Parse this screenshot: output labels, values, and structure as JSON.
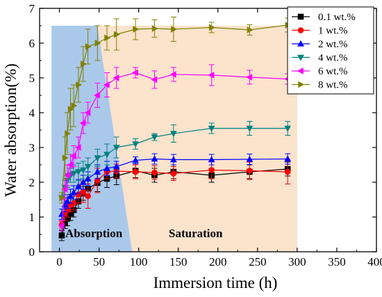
{
  "chart_data": {
    "type": "scatter",
    "xlabel": "Immersion time (h)",
    "ylabel": "Water absorption(%)",
    "xlim": [
      -25,
      400
    ],
    "ylim": [
      0,
      7
    ],
    "x_ticks": [
      0,
      50,
      100,
      150,
      200,
      250,
      300,
      350,
      400
    ],
    "y_ticks": [
      0,
      1,
      2,
      3,
      4,
      5,
      6,
      7
    ],
    "legend_position": "top-right",
    "regions": [
      {
        "label": "Absorption",
        "color": "#aac8ea",
        "polygon": [
          [
            -10,
            6.5
          ],
          [
            48,
            6.5
          ],
          [
            92,
            0
          ],
          [
            -10,
            0
          ]
        ]
      },
      {
        "label": "Saturation",
        "color": "#fbe3cc",
        "polygon": [
          [
            48,
            6.5
          ],
          [
            300,
            6.5
          ],
          [
            300,
            0
          ],
          [
            92,
            0
          ]
        ]
      }
    ],
    "series": [
      {
        "name": "0.1 wt.%",
        "color": "#000000",
        "marker": "square",
        "points": [
          [
            3,
            0.47,
            0.15
          ],
          [
            7,
            0.82,
            0.15
          ],
          [
            10,
            0.95,
            0.2
          ],
          [
            14,
            1.1,
            0.2
          ],
          [
            18,
            1.2,
            0.2
          ],
          [
            24,
            1.45,
            0.2
          ],
          [
            30,
            1.68,
            0.2
          ],
          [
            36,
            1.82,
            0.25
          ],
          [
            48,
            1.98,
            0.25
          ],
          [
            60,
            2.1,
            0.25
          ],
          [
            72,
            2.18,
            0.25
          ],
          [
            96,
            2.33,
            0.2
          ],
          [
            120,
            2.2,
            0.2
          ],
          [
            144,
            2.3,
            0.2
          ],
          [
            192,
            2.2,
            0.2
          ],
          [
            240,
            2.3,
            0.2
          ],
          [
            288,
            2.38,
            0.2
          ]
        ]
      },
      {
        "name": "1 wt.%",
        "color": "#ff0000",
        "marker": "circle",
        "points": [
          [
            3,
            0.78,
            0.1
          ],
          [
            7,
            1.1,
            0.2
          ],
          [
            10,
            1.2,
            0.2
          ],
          [
            14,
            1.35,
            0.2
          ],
          [
            18,
            1.4,
            0.2
          ],
          [
            24,
            1.65,
            0.25
          ],
          [
            30,
            1.72,
            0.3
          ],
          [
            36,
            1.6,
            0.35
          ],
          [
            48,
            2.05,
            0.35
          ],
          [
            60,
            2.3,
            0.2
          ],
          [
            72,
            2.32,
            0.2
          ],
          [
            96,
            2.3,
            0.2
          ],
          [
            120,
            2.28,
            0.2
          ],
          [
            144,
            2.25,
            0.2
          ],
          [
            192,
            2.35,
            0.25
          ],
          [
            240,
            2.33,
            0.25
          ],
          [
            288,
            2.3,
            0.35
          ]
        ]
      },
      {
        "name": "2 wt.%",
        "color": "#0000ff",
        "marker": "triangle-up",
        "points": [
          [
            3,
            1.08,
            0.15
          ],
          [
            7,
            1.35,
            0.2
          ],
          [
            10,
            1.45,
            0.2
          ],
          [
            14,
            1.6,
            0.2
          ],
          [
            18,
            1.7,
            0.2
          ],
          [
            24,
            1.88,
            0.2
          ],
          [
            30,
            2.0,
            0.2
          ],
          [
            36,
            2.1,
            0.2
          ],
          [
            48,
            2.3,
            0.2
          ],
          [
            60,
            2.4,
            0.2
          ],
          [
            72,
            2.45,
            0.15
          ],
          [
            96,
            2.63,
            0.1
          ],
          [
            120,
            2.67,
            0.15
          ],
          [
            144,
            2.65,
            0.15
          ],
          [
            192,
            2.65,
            0.15
          ],
          [
            240,
            2.66,
            0.15
          ],
          [
            288,
            2.67,
            0.15
          ]
        ]
      },
      {
        "name": "4 wt.%",
        "color": "#008080",
        "marker": "triangle-down",
        "points": [
          [
            3,
            1.55,
            0.15
          ],
          [
            7,
            1.85,
            0.2
          ],
          [
            10,
            2.05,
            0.2
          ],
          [
            14,
            2.2,
            0.2
          ],
          [
            18,
            2.25,
            0.25
          ],
          [
            24,
            2.3,
            0.25
          ],
          [
            30,
            2.35,
            0.25
          ],
          [
            36,
            2.45,
            0.25
          ],
          [
            48,
            2.7,
            0.25
          ],
          [
            60,
            2.8,
            0.3
          ],
          [
            72,
            3.0,
            0.3
          ],
          [
            96,
            3.1,
            0.15
          ],
          [
            120,
            3.3,
            0.1
          ],
          [
            144,
            3.4,
            0.25
          ],
          [
            192,
            3.55,
            0.15
          ],
          [
            240,
            3.55,
            0.2
          ],
          [
            288,
            3.55,
            0.2
          ]
        ]
      },
      {
        "name": "6 wt.%",
        "color": "#ff00ff",
        "marker": "triangle-left",
        "points": [
          [
            3,
            0.75,
            0.15
          ],
          [
            7,
            1.8,
            0.3
          ],
          [
            10,
            2.2,
            0.3
          ],
          [
            14,
            2.5,
            0.3
          ],
          [
            18,
            2.75,
            0.3
          ],
          [
            24,
            3.0,
            0.3
          ],
          [
            30,
            3.7,
            0.3
          ],
          [
            36,
            4.0,
            0.3
          ],
          [
            48,
            4.5,
            0.35
          ],
          [
            60,
            4.8,
            0.35
          ],
          [
            72,
            5.0,
            0.3
          ],
          [
            96,
            5.15,
            0.15
          ],
          [
            120,
            4.95,
            0.25
          ],
          [
            144,
            5.1,
            0.2
          ],
          [
            192,
            5.08,
            0.3
          ],
          [
            240,
            5.02,
            0.2
          ],
          [
            288,
            4.97,
            0.15
          ]
        ]
      },
      {
        "name": "8 wt.%",
        "color": "#808000",
        "marker": "triangle-right",
        "points": [
          [
            3,
            1.55,
            0.15
          ],
          [
            7,
            2.7,
            0.6
          ],
          [
            10,
            3.4,
            0.6
          ],
          [
            14,
            4.1,
            0.6
          ],
          [
            18,
            4.2,
            0.6
          ],
          [
            24,
            4.8,
            0.5
          ],
          [
            30,
            5.4,
            0.5
          ],
          [
            36,
            5.9,
            0.5
          ],
          [
            48,
            6.0,
            0.5
          ],
          [
            60,
            6.15,
            0.35
          ],
          [
            72,
            6.25,
            0.45
          ],
          [
            96,
            6.4,
            0.3
          ],
          [
            120,
            6.42,
            0.25
          ],
          [
            144,
            6.4,
            0.35
          ],
          [
            192,
            6.45,
            0.15
          ],
          [
            240,
            6.38,
            0.15
          ],
          [
            288,
            6.52,
            0.2
          ]
        ]
      }
    ]
  }
}
